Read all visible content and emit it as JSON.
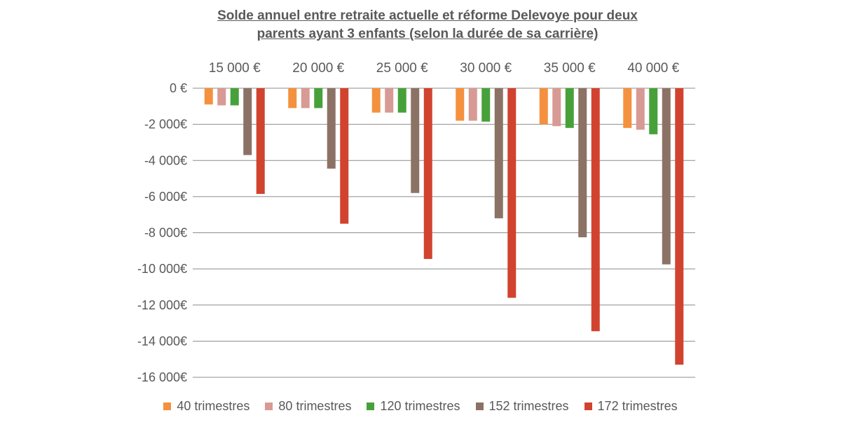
{
  "chart_data": {
    "type": "bar",
    "title_lines": [
      "Solde annuel entre retraite actuelle et réforme Delevoye pour deux",
      "parents ayant 3 enfants (selon la durée de sa carrière)"
    ],
    "categories": [
      "15 000 €",
      "20 000 €",
      "25 000 €",
      "30 000 €",
      "35 000 €",
      "40 000 €"
    ],
    "series": [
      {
        "name": "40 trimestres",
        "color": "#f4913e",
        "values": [
          -900,
          -1100,
          -1350,
          -1800,
          -2000,
          -2200
        ]
      },
      {
        "name": "80 trimestres",
        "color": "#d89a94",
        "values": [
          -950,
          -1100,
          -1350,
          -1800,
          -2100,
          -2300
        ]
      },
      {
        "name": "120 trimestres",
        "color": "#47a13a",
        "values": [
          -950,
          -1100,
          -1350,
          -1850,
          -2200,
          -2550
        ]
      },
      {
        "name": "152 trimestres",
        "color": "#8c7265",
        "values": [
          -3700,
          -4450,
          -5800,
          -7200,
          -8250,
          -9750
        ]
      },
      {
        "name": "172 trimestres",
        "color": "#d1432f",
        "values": [
          -5850,
          -7500,
          -9450,
          -11600,
          -13450,
          -15300
        ]
      }
    ],
    "y_ticks": [
      0,
      -2000,
      -4000,
      -6000,
      -8000,
      -10000,
      -12000,
      -14000,
      -16000
    ],
    "y_tick_labels": [
      "0 €",
      "-2 000€",
      "-4 000€",
      "-6 000€",
      "-8 000€",
      "-10 000€",
      "-12 000€",
      "-14 000€",
      "-16 000€"
    ],
    "ylim": [
      -16000,
      0
    ],
    "xlabel": "",
    "ylabel": "",
    "grid": true,
    "category_labels_position": "top",
    "legend_position": "bottom"
  }
}
